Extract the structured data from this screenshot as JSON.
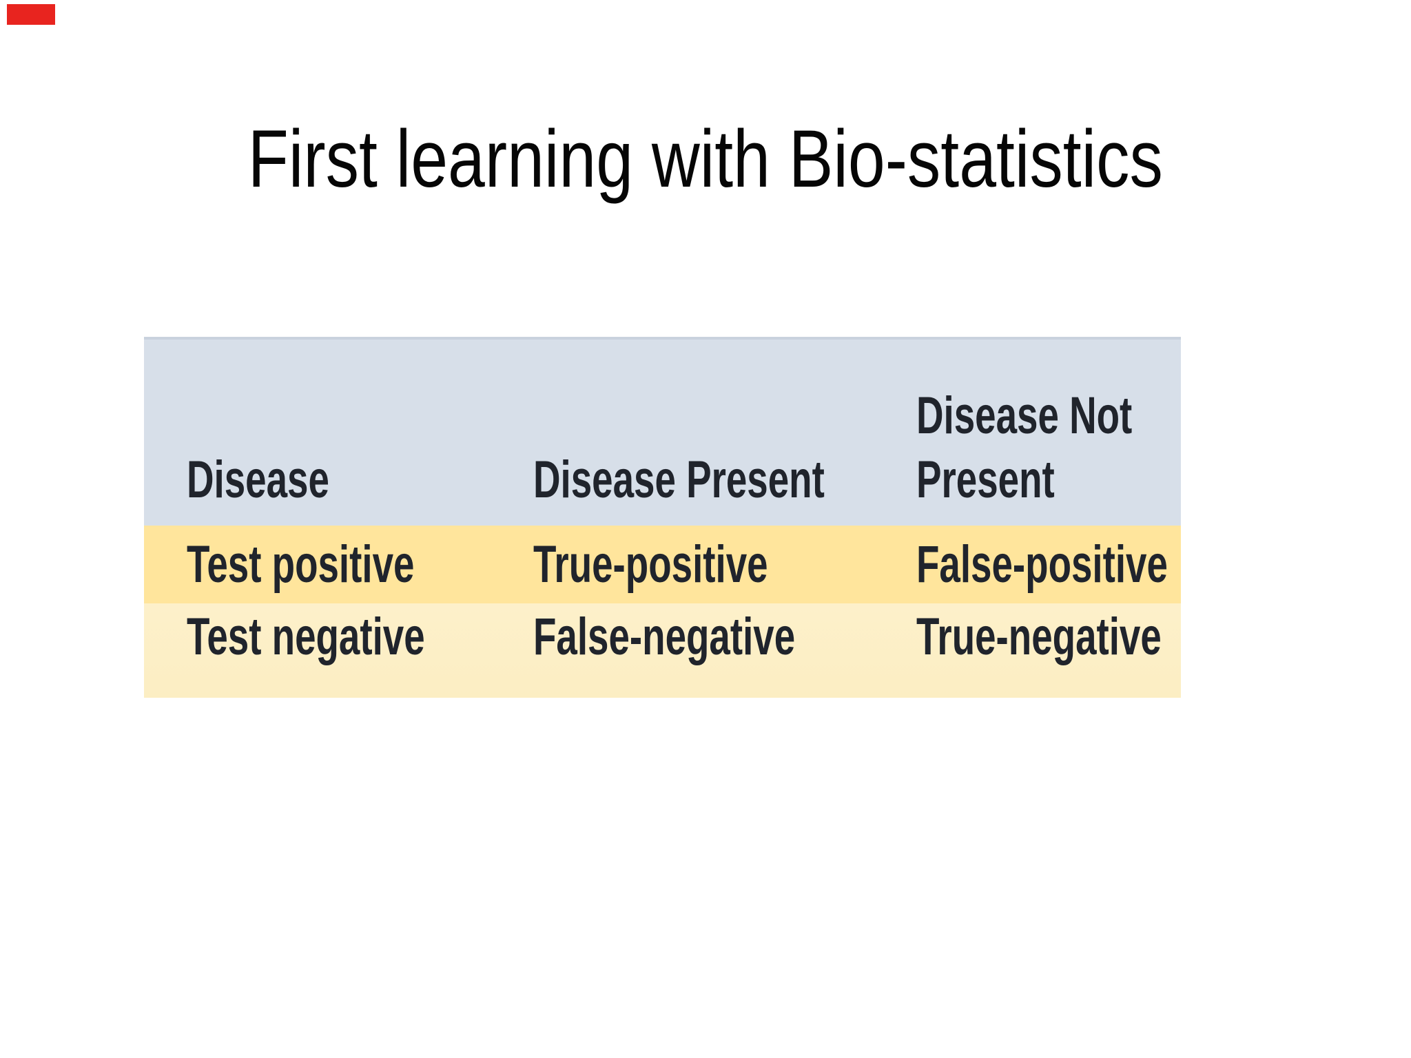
{
  "slide": {
    "title": "First learning with Bio-statistics",
    "marker_color": "#e8241f",
    "background_color": "#ffffff"
  },
  "table": {
    "columns": [
      "Disease",
      "Disease Present",
      "Disease Not Present"
    ],
    "column3_lines": [
      "Disease Not",
      "Present"
    ],
    "rows": [
      {
        "test": "Test positive",
        "disease_present": "True-positive",
        "disease_not_present": "False-positive"
      },
      {
        "test": "Test negative",
        "disease_present": "False-negative",
        "disease_not_present": "True-negative"
      }
    ],
    "colors": {
      "header_bg": "#d7dfe9",
      "row_positive_bg": "#ffe59c",
      "row_negative_bg": "#fdf0ca",
      "text": "#20242c"
    }
  }
}
